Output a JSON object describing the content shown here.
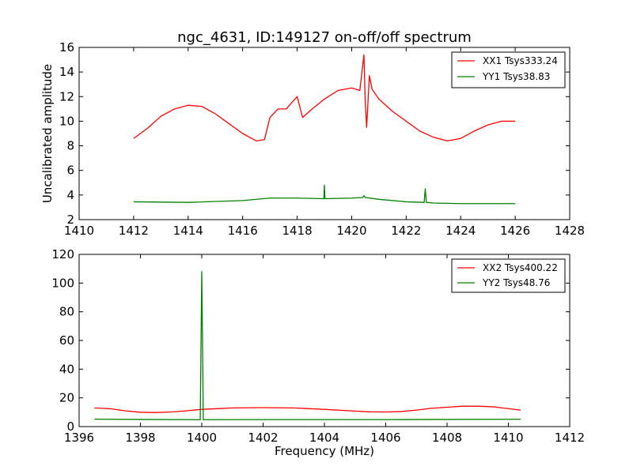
{
  "chart_data": [
    {
      "type": "line",
      "title": "ngc_4631, ID:149127 on-off/off spectrum",
      "xlabel": "",
      "ylabel": "Uncalibrated amplitude",
      "xlim": [
        1410,
        1428
      ],
      "ylim": [
        2,
        16
      ],
      "xticks": [
        "1410",
        "1412",
        "1414",
        "1416",
        "1418",
        "1420",
        "1422",
        "1424",
        "1426",
        "1428"
      ],
      "yticks": [
        "2",
        "4",
        "6",
        "8",
        "10",
        "12",
        "14",
        "16"
      ],
      "legend_position": "top-right",
      "series": [
        {
          "name": "XX1 Tsys333.24",
          "color": "#ff0000",
          "x": [
            1412,
            1412.5,
            1413,
            1413.5,
            1414,
            1414.5,
            1415,
            1415.5,
            1416,
            1416.5,
            1416.8,
            1417,
            1417.3,
            1417.6,
            1418,
            1418.2,
            1418.5,
            1419,
            1419.5,
            1420,
            1420.3,
            1420.45,
            1420.5,
            1420.55,
            1420.65,
            1420.75,
            1421,
            1421.5,
            1422,
            1422.5,
            1423,
            1423.5,
            1424,
            1424.5,
            1425,
            1425.5,
            1426
          ],
          "values": [
            8.6,
            9.4,
            10.4,
            11.0,
            11.3,
            11.2,
            10.6,
            9.8,
            9.0,
            8.4,
            8.5,
            10.3,
            11.0,
            11.0,
            12.0,
            10.3,
            10.9,
            11.8,
            12.5,
            12.7,
            12.5,
            15.4,
            11.5,
            9.5,
            13.7,
            12.6,
            11.8,
            10.8,
            10.0,
            9.2,
            8.7,
            8.4,
            8.6,
            9.2,
            9.7,
            10.0,
            10.0
          ]
        },
        {
          "name": "YY1 Tsys38.83",
          "color": "#008000",
          "x": [
            1412,
            1414,
            1416,
            1417,
            1418,
            1418.98,
            1419.0,
            1419.02,
            1420,
            1420.4,
            1420.45,
            1420.5,
            1421,
            1422,
            1422.66,
            1422.7,
            1422.74,
            1423,
            1424,
            1426
          ],
          "values": [
            3.45,
            3.4,
            3.55,
            3.75,
            3.75,
            3.7,
            4.8,
            3.7,
            3.75,
            3.8,
            3.95,
            3.8,
            3.65,
            3.45,
            3.4,
            4.5,
            3.4,
            3.35,
            3.3,
            3.3
          ]
        }
      ]
    },
    {
      "type": "line",
      "title": "",
      "xlabel": "Frequency (MHz)",
      "ylabel": "",
      "xlim": [
        1396,
        1412
      ],
      "ylim": [
        0,
        120
      ],
      "xticks": [
        "1396",
        "1398",
        "1400",
        "1402",
        "1404",
        "1406",
        "1408",
        "1410",
        "1412"
      ],
      "yticks": [
        "0",
        "20",
        "40",
        "60",
        "80",
        "100",
        "120"
      ],
      "legend_position": "top-right",
      "series": [
        {
          "name": "XX2 Tsys400.22",
          "color": "#ff0000",
          "x": [
            1396.5,
            1397,
            1397.5,
            1398,
            1398.5,
            1399,
            1399.5,
            1400,
            1400.5,
            1401,
            1402,
            1403,
            1404,
            1405,
            1405.5,
            1406,
            1406.5,
            1407,
            1407.5,
            1408,
            1408.5,
            1409,
            1409.5,
            1410,
            1410.4
          ],
          "values": [
            13.0,
            12.5,
            11.0,
            10.0,
            9.8,
            10.2,
            11.0,
            12.0,
            12.5,
            13.0,
            13.2,
            13.0,
            12.0,
            10.8,
            10.3,
            10.2,
            10.5,
            11.5,
            12.8,
            13.5,
            14.2,
            14.2,
            13.8,
            12.5,
            11.5
          ]
        },
        {
          "name": "YY2 Tsys48.76",
          "color": "#008000",
          "x": [
            1396.5,
            1398,
            1399.95,
            1400.0,
            1400.05,
            1402,
            1404,
            1406,
            1408,
            1410.4
          ],
          "values": [
            5.2,
            5.0,
            4.8,
            108,
            4.8,
            4.9,
            4.9,
            4.9,
            5.0,
            5.1
          ]
        }
      ]
    }
  ]
}
